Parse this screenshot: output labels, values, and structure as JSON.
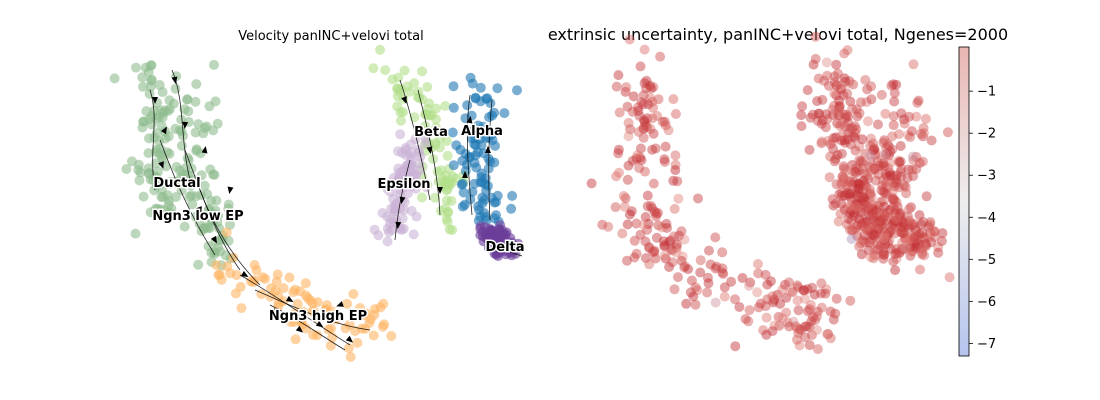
{
  "chart_data": [
    {
      "type": "scatter",
      "subtype": "umap-velocity-stream",
      "title": "Velocity panINC+velovi total",
      "xlabel": "",
      "ylabel": "",
      "axes_visible": false,
      "grid": false,
      "legend": "on-data",
      "clusters": [
        {
          "name": "Ductal",
          "color": "#8fbc8f"
        },
        {
          "name": "Ngn3 low EP",
          "color": "#8fbc8f"
        },
        {
          "name": "Ngn3 high EP",
          "color": "#fdb462"
        },
        {
          "name": "Beta",
          "color": "#b2df8a"
        },
        {
          "name": "Alpha",
          "color": "#1f78b4"
        },
        {
          "name": "Epsilon",
          "color": "#cab2d6"
        },
        {
          "name": "Delta",
          "color": "#6a3d9a"
        }
      ]
    },
    {
      "type": "scatter",
      "subtype": "umap-continuous",
      "title": "extrinsic uncertainty, panINC+velovi total, Ngenes=2000",
      "xlabel": "",
      "ylabel": "",
      "axes_visible": false,
      "grid": false,
      "colormap": "coolwarm",
      "colorbar": {
        "position": "right",
        "range": [
          -7.3,
          0.05
        ],
        "ticks": [
          -1,
          -2,
          -3,
          -4,
          -5,
          -6,
          -7
        ],
        "tick_labels": [
          "−1",
          "−2",
          "−3",
          "−4",
          "−5",
          "−6",
          "−7"
        ]
      }
    }
  ]
}
